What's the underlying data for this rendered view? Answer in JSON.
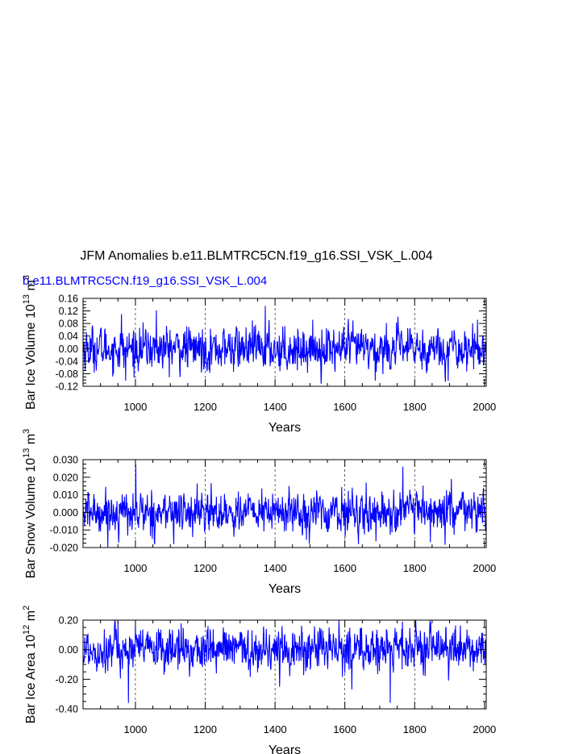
{
  "title": "JFM Anomalies b.e11.BLMTRC5CN.f19_g16.SSI_VSK_L.004",
  "run_label": "b.e11.BLMTRC5CN.f19_g16.SSI_VSK_L.004",
  "colors": {
    "series": "#0000ff",
    "label": "#0000ff",
    "axis": "#000000",
    "grid": "#000000"
  },
  "chart_data": [
    {
      "type": "line",
      "ylabel_main": "Bar Ice Volume 10",
      "ylabel_exp": "13",
      "ylabel_unit": " m",
      "ylabel_unit_exp": "3",
      "xlabel": "Years",
      "xlim": [
        850,
        2005
      ],
      "ylim": [
        -0.12,
        0.16
      ],
      "x_ticks": [
        "1000",
        "1200",
        "1400",
        "1600",
        "1800",
        "2000"
      ],
      "y_ticks": [
        "0.16",
        "0.12",
        "0.08",
        "0.04",
        "0.00",
        "-0.04",
        "-0.08",
        "-0.12"
      ],
      "grid": "dashed vertical at 1000, 1200, 1400, 1600, 1800",
      "series": [
        {
          "x_start": 850,
          "x_end": 2005,
          "amplitude": 0.032,
          "extremes": [
            [
              1372,
              0.136
            ],
            [
              972,
              -0.102
            ],
            [
              1687,
              -0.102
            ],
            [
              960,
              0.11
            ],
            [
              1060,
              0.122
            ]
          ]
        }
      ]
    },
    {
      "type": "line",
      "ylabel_main": "Bar Snow Volume 10",
      "ylabel_exp": "13",
      "ylabel_unit": " m",
      "ylabel_unit_exp": "3",
      "xlabel": "Years",
      "xlim": [
        850,
        2005
      ],
      "ylim": [
        -0.02,
        0.03
      ],
      "x_ticks": [
        "1000",
        "1200",
        "1400",
        "1600",
        "1800",
        "2000"
      ],
      "y_ticks": [
        "0.030",
        "0.020",
        "0.010",
        "0.000",
        "-0.010",
        "-0.020"
      ],
      "grid": "dashed vertical at 1000, 1200, 1400, 1600, 1800",
      "series": [
        {
          "x_start": 850,
          "x_end": 2005,
          "amplitude": 0.0055,
          "extremes": [
            [
              1001,
              0.027
            ],
            [
              1766,
              0.026
            ],
            [
              1110,
              -0.018
            ],
            [
              1845,
              -0.017
            ],
            [
              1905,
              0.019
            ]
          ]
        }
      ]
    },
    {
      "type": "line",
      "ylabel_main": "Bar Ice Area 10",
      "ylabel_exp": "12",
      "ylabel_unit": " m",
      "ylabel_unit_exp": "2",
      "xlabel": "Years",
      "xlim": [
        850,
        2005
      ],
      "ylim": [
        -0.4,
        0.2
      ],
      "x_ticks": [
        "1000",
        "1200",
        "1400",
        "1600",
        "1800",
        "2000"
      ],
      "y_ticks": [
        "0.20",
        "0.00",
        "-0.20",
        "-0.40"
      ],
      "grid": "dashed vertical at 1000, 1200, 1400, 1600, 1800",
      "series": [
        {
          "x_start": 850,
          "x_end": 2005,
          "amplitude": 0.07,
          "extremes": [
            [
              980,
              -0.36
            ],
            [
              1730,
              -0.36
            ],
            [
              1765,
              0.19
            ],
            [
              950,
              0.19
            ],
            [
              1620,
              -0.27
            ],
            [
              1420,
              0.16
            ]
          ]
        }
      ]
    }
  ]
}
